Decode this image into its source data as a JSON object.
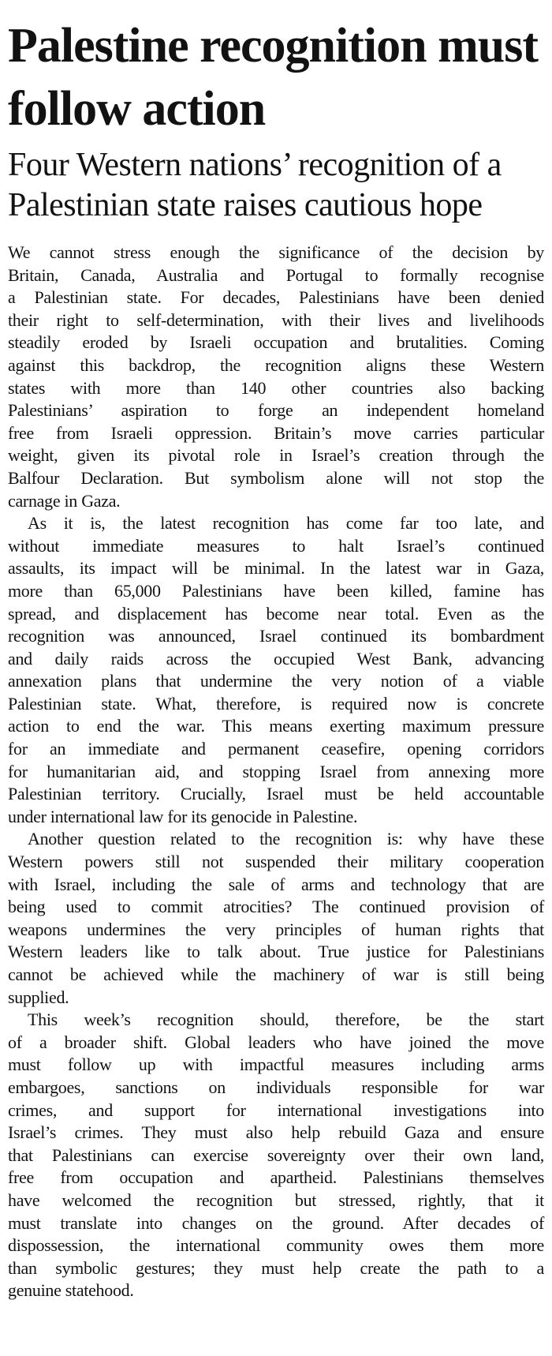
{
  "article": {
    "headline": "Palestine recognition must follow action",
    "standfirst": "Four Western nations’ recognition of a Palestinian state raises cautious hope",
    "colors": {
      "text": "#121212",
      "background": "#ffffff"
    },
    "paragraphs": [
      {
        "lines": [
          "We cannot stress enough the significance of the decision by",
          "Britain, Canada, Australia and Portugal to formally recognise",
          "a Palestinian state. For decades, Palestinians have been denied",
          "their right to self-determination, with their lives and livelihoods",
          "steadily eroded by Israeli occupation and brutalities. Coming",
          "against this backdrop, the recognition aligns these Western",
          "states with more than 140 other countries also backing",
          "Palestinians’ aspiration to forge an independent homeland",
          "free from Israeli oppression. Britain’s move carries particular",
          "weight, given its pivotal role in Israel’s creation through the",
          "Balfour Declaration. But symbolism alone will not stop the",
          "carnage in Gaza."
        ]
      },
      {
        "lines": [
          "As it is, the latest recognition has come far too late, and",
          "without immediate measures to halt Israel’s continued",
          "assaults, its impact will be minimal. In the latest war in Gaza,",
          "more than 65,000 Palestinians have been killed, famine has",
          "spread, and displacement has become near total. Even as the",
          "recognition was announced, Israel continued its bombardment",
          "and daily raids across the occupied West Bank, advancing",
          "annexation plans that undermine the very notion of a viable",
          "Palestinian state. What, therefore, is required now is concrete",
          "action to end the war. This means exerting maximum pressure",
          "for an immediate and permanent ceasefire, opening corridors",
          "for humanitarian aid, and stopping Israel from annexing more",
          "Palestinian territory. Crucially, Israel must be held accountable",
          "under international law for its genocide in Palestine."
        ]
      },
      {
        "lines": [
          "Another question related to the recognition is: why have these",
          "Western powers still not suspended their military cooperation",
          "with Israel, including the sale of arms and technology that are",
          "being used to commit atrocities? The continued provision of",
          "weapons undermines the very principles of human rights that",
          "Western leaders like to talk about. True justice for Palestinians",
          "cannot be achieved while the machinery of war is still being",
          "supplied."
        ]
      },
      {
        "lines": [
          "This week’s recognition should, therefore, be the start",
          "of a broader shift. Global leaders who have joined the move",
          "must follow up with impactful measures including arms",
          "embargoes, sanctions on individuals responsible for war",
          "crimes, and support for international investigations into",
          "Israel’s crimes. They must also help rebuild Gaza and ensure",
          "that Palestinians can exercise sovereignty over their own land,",
          "free from occupation and apartheid. Palestinians themselves",
          "have welcomed the recognition but stressed, rightly, that it",
          "must translate into changes on the ground. After decades of",
          "dispossession, the international community owes them more",
          "than symbolic gestures; they must help create the path to a",
          "genuine statehood."
        ]
      }
    ]
  }
}
